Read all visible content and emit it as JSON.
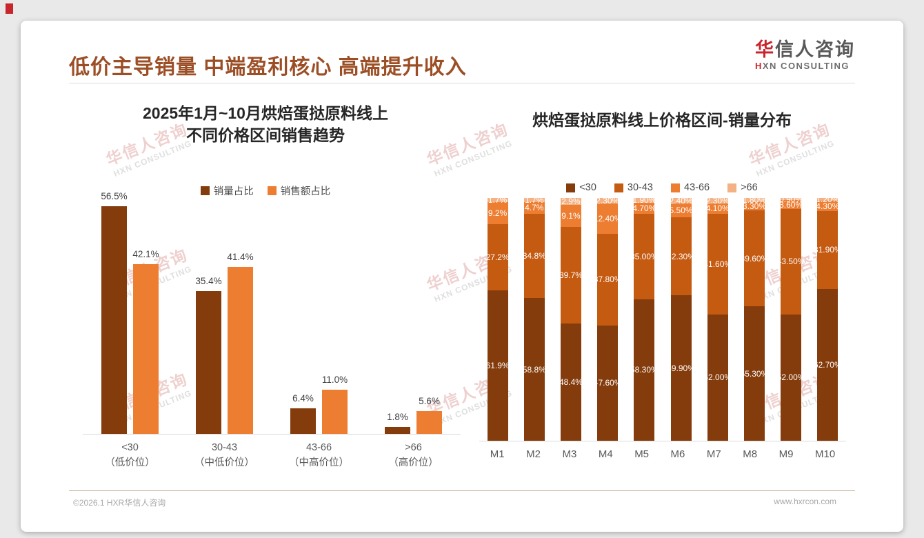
{
  "header": {
    "title": "低价主导销量 中端盈利核心 高端提升收入",
    "logo": {
      "cn_red": "华",
      "cn_rest": "信人咨询",
      "en_red": "H",
      "en_rest": "XN CONSULTING"
    }
  },
  "watermark": {
    "cn": "华信人咨询",
    "en": "HXN CONSULTING"
  },
  "footer": {
    "left": "©2026.1 HXR华信人咨询",
    "right": "www.hxrcon.com"
  },
  "colors": {
    "title_accent": "#9c4f26",
    "brand_red": "#c9252c",
    "dark_brown": "#843C0C",
    "burnt_orange": "#C55A11",
    "orange": "#ED7D31",
    "peach": "#F4B183",
    "axis_gray": "#d9d9d9"
  },
  "chart_data": [
    {
      "type": "bar",
      "title": "2025年1月~10月烘焙蛋挞原料线上不同价格区间销售趋势",
      "title_lines": [
        "2025年1月~10月烘焙蛋挞原料线上",
        "不同价格区间销售趋势"
      ],
      "categories": [
        "<30",
        "30-43",
        "43-66",
        ">66"
      ],
      "category_sublabels": [
        "（低价位）",
        "（中低价位）",
        "（中高价位）",
        "（高价位）"
      ],
      "ylim": [
        0,
        60
      ],
      "grid": false,
      "legend_position": "top",
      "series": [
        {
          "name": "销量占比",
          "color": "#843C0C",
          "values": [
            56.5,
            35.4,
            6.4,
            1.8
          ],
          "labels": [
            "56.5%",
            "35.4%",
            "6.4%",
            "1.8%"
          ]
        },
        {
          "name": "销售额占比",
          "color": "#ED7D31",
          "values": [
            42.1,
            41.4,
            11.0,
            5.6
          ],
          "labels": [
            "42.1%",
            "41.4%",
            "11.0%",
            "5.6%"
          ]
        }
      ]
    },
    {
      "type": "bar",
      "subtype": "stacked-100",
      "title": "烘焙蛋挞原料线上价格区间-销量分布",
      "categories": [
        "M1",
        "M2",
        "M3",
        "M4",
        "M5",
        "M6",
        "M7",
        "M8",
        "M9",
        "M10"
      ],
      "ylim": [
        0,
        100
      ],
      "grid": false,
      "legend_position": "top",
      "series": [
        {
          "name": "<30",
          "color": "#843C0C",
          "values": [
            61.9,
            58.8,
            48.4,
            47.6,
            58.3,
            59.9,
            52.0,
            55.3,
            52.0,
            62.7
          ],
          "labels": [
            "61.9%",
            "58.8%",
            "48.4%",
            "47.60%",
            "58.30%",
            "59.90%",
            "52.00%",
            "55.30%",
            "52.00%",
            "62.70%"
          ]
        },
        {
          "name": "30-43",
          "color": "#C55A11",
          "values": [
            27.2,
            34.8,
            39.7,
            37.8,
            35.0,
            32.3,
            41.6,
            39.6,
            43.5,
            31.9
          ],
          "labels": [
            "27.2%",
            "34.8%",
            "39.7%",
            "37.80%",
            "35.00%",
            "32.30%",
            "41.60%",
            "39.60%",
            "43.50%",
            "31.90%"
          ]
        },
        {
          "name": "43-66",
          "color": "#ED7D31",
          "values": [
            9.2,
            4.7,
            9.1,
            12.4,
            4.7,
            5.5,
            4.1,
            3.3,
            3.6,
            4.3
          ],
          "labels": [
            "9.2%",
            "4.7%",
            "9.1%",
            "12.40%",
            "4.70%",
            "5.50%",
            "4.10%",
            "3.30%",
            "3.60%",
            "4.30%"
          ]
        },
        {
          "name": ">66",
          "color": "#F4B183",
          "values": [
            1.7,
            1.7,
            2.9,
            2.3,
            1.9,
            2.4,
            2.3,
            1.8,
            0.9,
            1.2
          ],
          "labels": [
            "1.7%",
            "1.7%",
            "2.9%",
            "2.30%",
            "1.90%",
            "2.40%",
            "2.30%",
            "1.80%",
            "0.90%",
            "1.20%"
          ]
        }
      ]
    }
  ]
}
